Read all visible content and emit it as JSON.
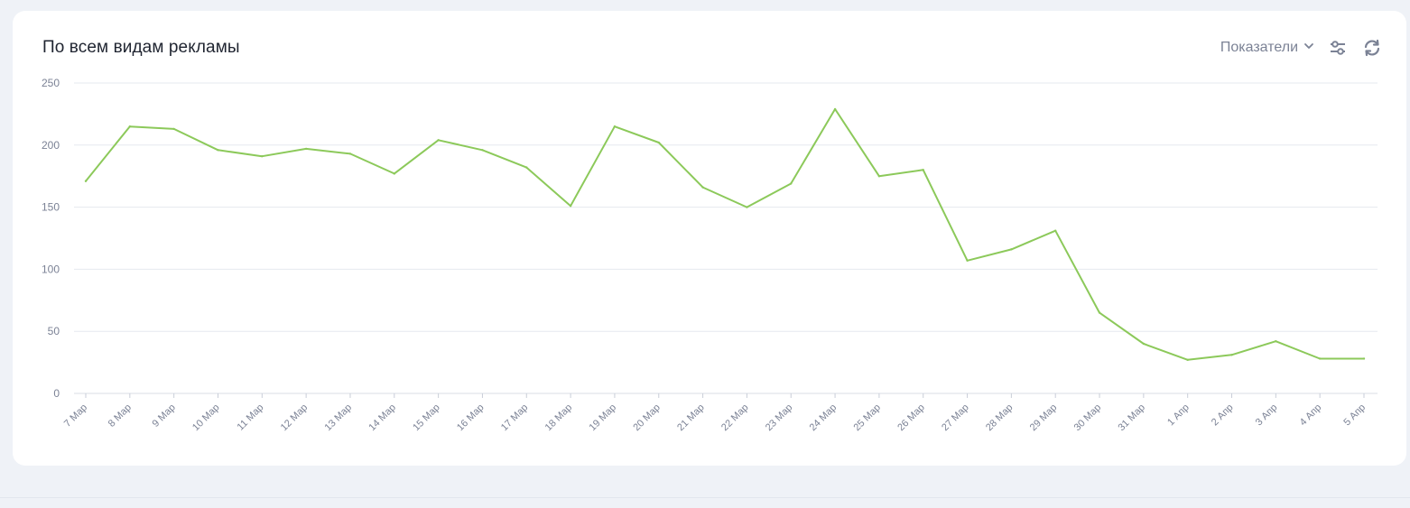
{
  "card": {
    "title": "По всем видам рекламы",
    "metrics_label": "Показатели"
  },
  "icons": {
    "dropdown": "chevron-down-icon",
    "settings": "sliders-icon",
    "refresh": "refresh-icon"
  },
  "colors": {
    "line": "#8cc95a",
    "grid": "#e6e9ef",
    "axis_text": "#7b8295",
    "title": "#1f2430"
  },
  "chart_data": {
    "type": "line",
    "title": "По всем видам рекламы",
    "xlabel": "",
    "ylabel": "",
    "ylim": [
      0,
      250
    ],
    "yticks": [
      0,
      50,
      100,
      150,
      200,
      250
    ],
    "grid": true,
    "categories": [
      "7 Мар",
      "8 Мар",
      "9 Мар",
      "10 Мар",
      "11 Мар",
      "12 Мар",
      "13 Мар",
      "14 Мар",
      "15 Мар",
      "16 Мар",
      "17 Мар",
      "18 Мар",
      "19 Мар",
      "20 Мар",
      "21 Мар",
      "22 Мар",
      "23 Мар",
      "24 Мар",
      "25 Мар",
      "26 Мар",
      "27 Мар",
      "28 Мар",
      "29 Мар",
      "30 Мар",
      "31 Мар",
      "1 Апр",
      "2 Апр",
      "3 Апр",
      "4 Апр",
      "5 Апр"
    ],
    "series": [
      {
        "values": [
          171,
          215,
          213,
          196,
          191,
          197,
          193,
          177,
          204,
          196,
          182,
          151,
          215,
          202,
          166,
          150,
          169,
          229,
          175,
          180,
          107,
          116,
          131,
          65,
          40,
          27,
          31,
          42,
          28,
          28
        ]
      }
    ]
  }
}
